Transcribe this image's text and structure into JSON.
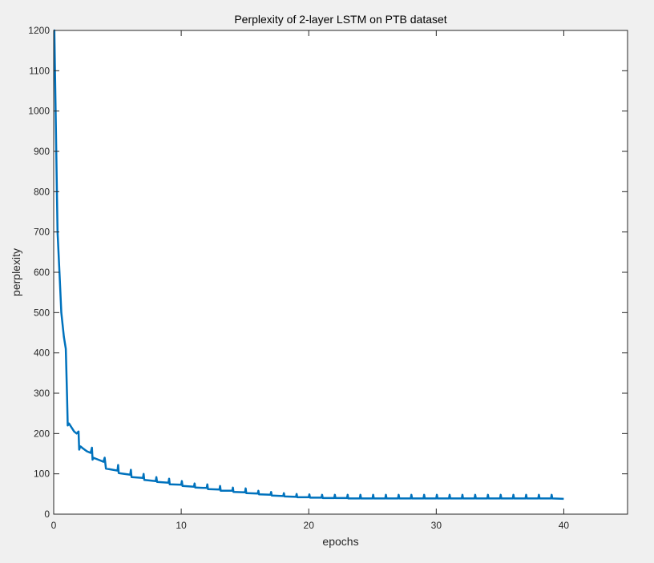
{
  "chart_data": {
    "type": "line",
    "title": "Perplexity of 2-layer LSTM on PTB dataset",
    "xlabel": "epochs",
    "ylabel": "perplexity",
    "xlim": [
      0,
      45
    ],
    "ylim": [
      0,
      1200
    ],
    "xticks": [
      0,
      10,
      20,
      30,
      40
    ],
    "yticks": [
      0,
      100,
      200,
      300,
      400,
      500,
      600,
      700,
      800,
      900,
      1000,
      1100,
      1200
    ],
    "grid": false,
    "line_color": "#0072bd",
    "series": [
      {
        "x": [
          0,
          0.05,
          0.1,
          0.15,
          0.2,
          0.3,
          0.45,
          0.6,
          0.8,
          0.95,
          1.05,
          1.1,
          1.2,
          1.4,
          1.6,
          1.8,
          1.95,
          2.0,
          2.05,
          2.1,
          2.3,
          2.6,
          2.9,
          3.0,
          3.05,
          3.1,
          3.5,
          3.9,
          4.0,
          4.1,
          5.0,
          5.05,
          5.1,
          6.0,
          6.05,
          6.1,
          7.0,
          7.05,
          7.1,
          8.0,
          8.05,
          8.1,
          9.0,
          9.05,
          9.1,
          10.0,
          10.05,
          10.1,
          11.0,
          11.05,
          11.1,
          12.0,
          12.05,
          12.1,
          13.0,
          13.05,
          13.1,
          14.0,
          14.05,
          14.1,
          15.0,
          15.05,
          15.1,
          16.0,
          16.05,
          16.1,
          17.0,
          17.05,
          17.1,
          18.0,
          18.05,
          18.1,
          19.0,
          19.05,
          19.1,
          20.0,
          20.05,
          20.1,
          21.0,
          21.05,
          21.1,
          22.0,
          22.05,
          22.1,
          23.0,
          23.05,
          23.1,
          24.0,
          24.05,
          24.1,
          25.0,
          25.05,
          25.1,
          26.0,
          26.05,
          26.1,
          27.0,
          27.05,
          27.1,
          28.0,
          28.05,
          28.1,
          29.0,
          29.05,
          29.1,
          30.0,
          30.05,
          30.1,
          31.0,
          31.05,
          31.1,
          32.0,
          32.05,
          32.1,
          33.0,
          33.05,
          33.1,
          34.0,
          34.05,
          34.1,
          35.0,
          35.05,
          35.1,
          36.0,
          36.05,
          36.1,
          37.0,
          37.05,
          37.1,
          38.0,
          38.05,
          38.1,
          39.0,
          39.05,
          39.1,
          40.0
        ],
        "y": [
          1200,
          1200,
          1100,
          1000,
          900,
          700,
          600,
          500,
          440,
          410,
          290,
          220,
          225,
          215,
          205,
          200,
          205,
          160,
          165,
          168,
          163,
          156,
          152,
          165,
          135,
          140,
          135,
          130,
          140,
          113,
          108,
          122,
          102,
          98,
          110,
          92,
          90,
          100,
          85,
          82,
          92,
          80,
          78,
          88,
          74,
          73,
          82,
          70,
          68,
          76,
          66,
          65,
          74,
          62,
          61,
          70,
          58,
          58,
          66,
          55,
          54,
          64,
          52,
          51,
          58,
          49,
          48,
          55,
          46,
          45,
          52,
          44,
          43,
          50,
          42,
          42,
          49,
          41,
          41,
          48,
          40,
          40,
          48,
          40,
          40,
          48,
          39,
          39,
          48,
          39,
          39,
          48,
          39,
          39,
          48,
          39,
          39,
          48,
          39,
          39,
          48,
          39,
          39,
          48,
          39,
          39,
          48,
          39,
          39,
          48,
          39,
          39,
          48,
          39,
          39,
          48,
          39,
          39,
          48,
          39,
          39,
          48,
          39,
          39,
          48,
          39,
          39,
          48,
          39,
          39,
          48,
          39,
          39,
          48,
          39,
          38
        ]
      }
    ]
  }
}
